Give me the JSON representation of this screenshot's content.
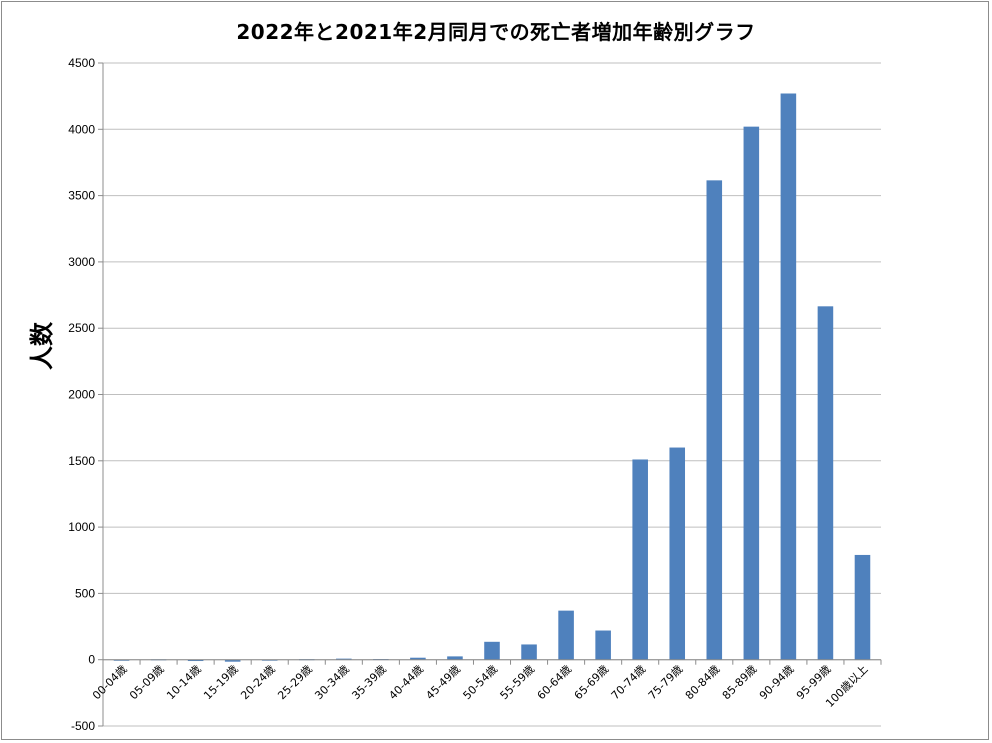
{
  "chart_data": {
    "type": "bar",
    "title": "2022年と2021年2月同月での死亡者増加年齢別グラフ",
    "ylabel": "人数",
    "xlabel": "",
    "ylim": [
      -500,
      4500
    ],
    "yticks": [
      -500,
      0,
      500,
      1000,
      1500,
      2000,
      2500,
      3000,
      3500,
      4000,
      4500
    ],
    "grid": true,
    "legend": "none",
    "bar_color": "#4f81bd",
    "categories": [
      "00-04歳",
      "05-09歳",
      "10-14歳",
      "15-19歳",
      "20-24歳",
      "25-29歳",
      "30-34歳",
      "35-39歳",
      "40-44歳",
      "45-49歳",
      "50-54歳",
      "55-59歳",
      "60-64歳",
      "65-69歳",
      "70-74歳",
      "75-79歳",
      "80-84歳",
      "85-89歳",
      "90-94歳",
      "95-99歳",
      "100歳以上"
    ],
    "values": [
      -8,
      3,
      -10,
      -15,
      0,
      4,
      8,
      5,
      15,
      25,
      135,
      115,
      370,
      220,
      1510,
      1600,
      3615,
      4020,
      4270,
      2665,
      790
    ]
  }
}
